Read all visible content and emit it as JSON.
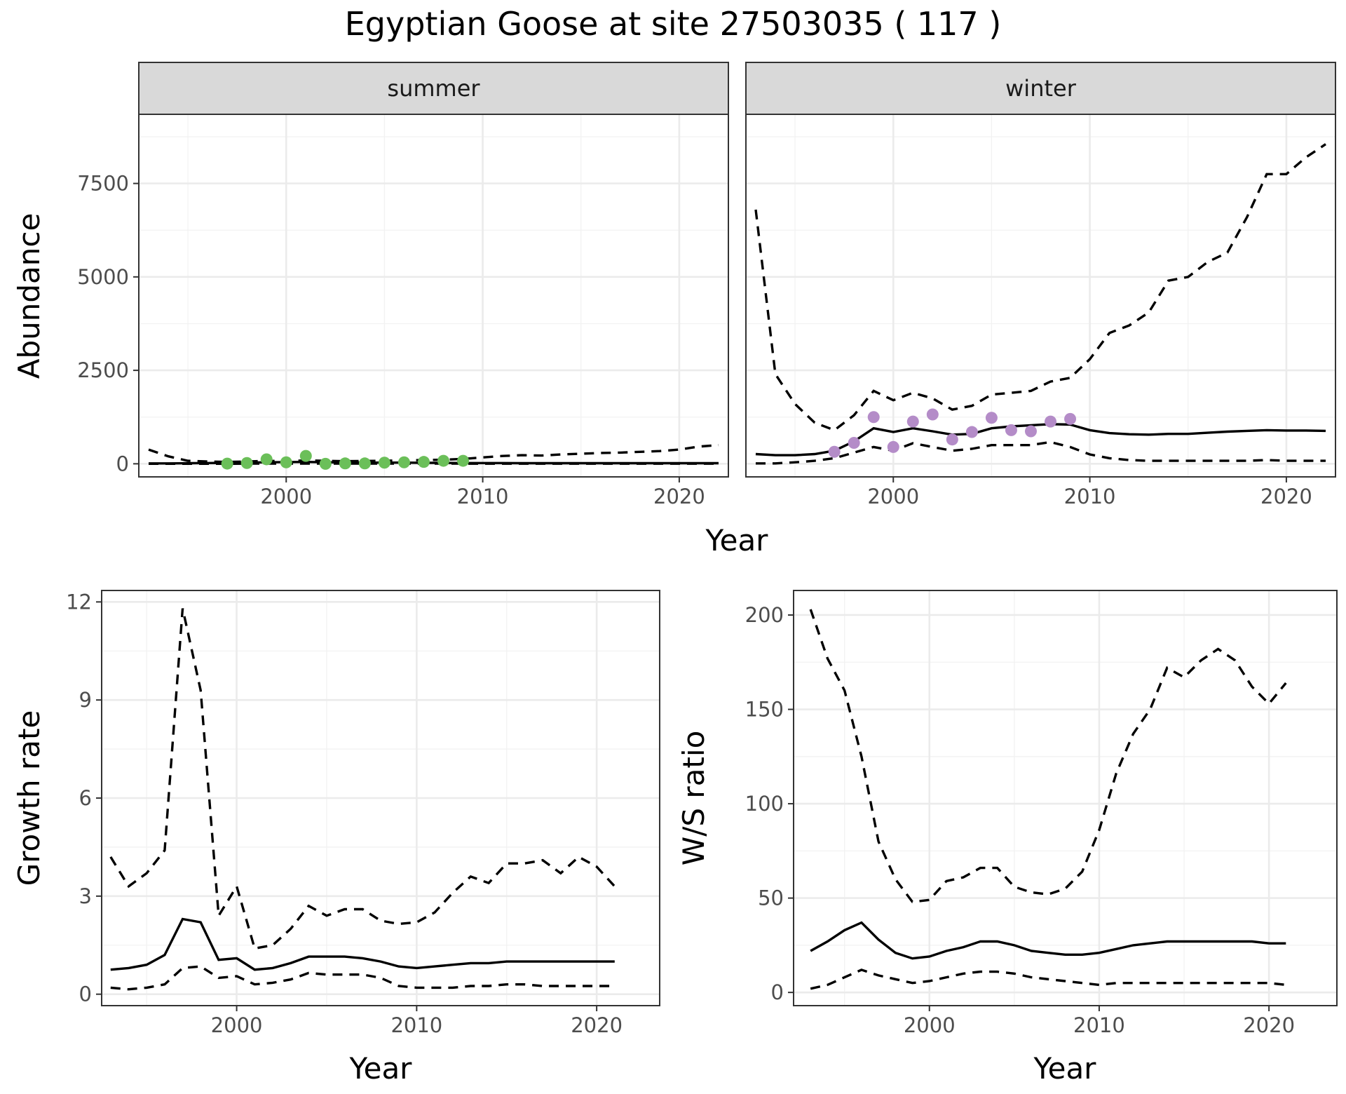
{
  "title": "Egyptian Goose at site 27503035 ( 117 )",
  "colors": {
    "summer_points": "#6bbf59",
    "winter_points": "#b48cc8",
    "strip": "#d9d9d9"
  },
  "chart_data": [
    {
      "type": "line",
      "facet": "summer",
      "strip_label": "summer",
      "xlabel": "Year",
      "ylabel": "Abundance",
      "xlim": [
        1992.5,
        2022.5
      ],
      "ylim": [
        -350,
        9350
      ],
      "xticks": [
        2000,
        2010,
        2020
      ],
      "yticks": [
        0,
        2500,
        5000,
        7500
      ],
      "grid": true,
      "series": [
        {
          "role": "mean",
          "style": "solid",
          "x": [
            1993,
            1994,
            1995,
            1996,
            1997,
            1998,
            1999,
            2000,
            2001,
            2002,
            2003,
            2004,
            2005,
            2006,
            2007,
            2008,
            2009,
            2010,
            2011,
            2012,
            2013,
            2014,
            2015,
            2016,
            2017,
            2018,
            2019,
            2020,
            2021,
            2022
          ],
          "y": [
            10,
            10,
            15,
            20,
            25,
            30,
            40,
            45,
            50,
            40,
            35,
            30,
            30,
            30,
            25,
            25,
            20,
            20,
            20,
            15,
            15,
            15,
            15,
            15,
            15,
            15,
            15,
            15,
            15,
            15
          ]
        },
        {
          "role": "upper",
          "style": "dashed",
          "x": [
            1993,
            1994,
            1995,
            1996,
            1997,
            1998,
            1999,
            2000,
            2001,
            2002,
            2003,
            2004,
            2005,
            2006,
            2007,
            2008,
            2009,
            2010,
            2011,
            2012,
            2013,
            2014,
            2015,
            2016,
            2017,
            2018,
            2019,
            2020,
            2021,
            2022
          ],
          "y": [
            380,
            200,
            80,
            60,
            50,
            60,
            80,
            70,
            90,
            80,
            70,
            75,
            80,
            90,
            100,
            110,
            130,
            170,
            210,
            230,
            220,
            250,
            270,
            290,
            300,
            320,
            340,
            380,
            460,
            500
          ]
        },
        {
          "role": "lower",
          "style": "dashed",
          "x": [
            1993,
            1994,
            1995,
            1996,
            1997,
            1998,
            1999,
            2000,
            2001,
            2002,
            2003,
            2004,
            2005,
            2006,
            2007,
            2008,
            2009,
            2010,
            2011,
            2012,
            2013,
            2014,
            2015,
            2016,
            2017,
            2018,
            2019,
            2020,
            2021,
            2022
          ],
          "y": [
            0,
            0,
            0,
            0,
            0,
            5,
            5,
            5,
            5,
            5,
            5,
            5,
            5,
            5,
            5,
            5,
            5,
            3,
            3,
            2,
            2,
            2,
            2,
            2,
            2,
            2,
            2,
            2,
            2,
            2
          ]
        }
      ],
      "points": {
        "x": [
          1997,
          1998,
          1999,
          2000,
          2001,
          2002,
          2003,
          2004,
          2005,
          2006,
          2007,
          2008,
          2009
        ],
        "y": [
          5,
          20,
          120,
          40,
          210,
          0,
          10,
          10,
          30,
          40,
          50,
          80,
          80
        ]
      }
    },
    {
      "type": "line",
      "facet": "winter",
      "strip_label": "winter",
      "xlabel": "Year",
      "ylabel": "Abundance",
      "xlim": [
        1992.5,
        2022.5
      ],
      "ylim": [
        -350,
        9350
      ],
      "xticks": [
        2000,
        2010,
        2020
      ],
      "yticks": [
        0,
        2500,
        5000,
        7500
      ],
      "grid": true,
      "series": [
        {
          "role": "mean",
          "style": "solid",
          "x": [
            1993,
            1994,
            1995,
            1996,
            1997,
            1998,
            1999,
            2000,
            2001,
            2002,
            2003,
            2004,
            2005,
            2006,
            2007,
            2008,
            2009,
            2010,
            2011,
            2012,
            2013,
            2014,
            2015,
            2016,
            2017,
            2018,
            2019,
            2020,
            2021,
            2022
          ],
          "y": [
            260,
            230,
            230,
            260,
            350,
            600,
            950,
            850,
            950,
            870,
            780,
            800,
            950,
            1000,
            1030,
            1060,
            1050,
            900,
            820,
            790,
            780,
            800,
            800,
            830,
            860,
            880,
            900,
            890,
            890,
            880
          ]
        },
        {
          "role": "upper",
          "style": "dashed",
          "x": [
            1993,
            1994,
            1995,
            1996,
            1997,
            1998,
            1999,
            2000,
            2001,
            2002,
            2003,
            2004,
            2005,
            2006,
            2007,
            2008,
            2009,
            2010,
            2011,
            2012,
            2013,
            2014,
            2015,
            2016,
            2017,
            2018,
            2019,
            2020,
            2021,
            2022
          ],
          "y": [
            6800,
            2400,
            1600,
            1100,
            900,
            1300,
            1950,
            1700,
            1900,
            1750,
            1450,
            1550,
            1850,
            1900,
            1950,
            2200,
            2300,
            2800,
            3500,
            3700,
            4050,
            4900,
            5000,
            5400,
            5650,
            6600,
            7750,
            7750,
            8200,
            8550
          ]
        },
        {
          "role": "lower",
          "style": "dashed",
          "x": [
            1993,
            1994,
            1995,
            1996,
            1997,
            1998,
            1999,
            2000,
            2001,
            2002,
            2003,
            2004,
            2005,
            2006,
            2007,
            2008,
            2009,
            2010,
            2011,
            2012,
            2013,
            2014,
            2015,
            2016,
            2017,
            2018,
            2019,
            2020,
            2021,
            2022
          ],
          "y": [
            10,
            10,
            40,
            80,
            150,
            300,
            450,
            350,
            550,
            450,
            350,
            400,
            500,
            500,
            500,
            580,
            450,
            250,
            150,
            100,
            80,
            80,
            80,
            80,
            80,
            80,
            100,
            80,
            80,
            80
          ]
        }
      ],
      "points": {
        "x": [
          1997,
          1998,
          1999,
          2000,
          2001,
          2002,
          2003,
          2004,
          2005,
          2006,
          2007,
          2008,
          2009
        ],
        "y": [
          320,
          560,
          1250,
          450,
          1130,
          1320,
          650,
          850,
          1230,
          900,
          870,
          1130,
          1200
        ]
      }
    },
    {
      "type": "line",
      "facet": "growth",
      "xlabel": "Year",
      "ylabel": "Growth rate",
      "xlim": [
        1992.5,
        2023.5
      ],
      "ylim": [
        -0.35,
        12.35
      ],
      "xticks": [
        2000,
        2010,
        2020
      ],
      "yticks": [
        0,
        3,
        6,
        9,
        12
      ],
      "grid": true,
      "series": [
        {
          "role": "mean",
          "style": "solid",
          "x": [
            1993,
            1994,
            1995,
            1996,
            1997,
            1998,
            1999,
            2000,
            2001,
            2002,
            2003,
            2004,
            2005,
            2006,
            2007,
            2008,
            2009,
            2010,
            2011,
            2012,
            2013,
            2014,
            2015,
            2016,
            2017,
            2018,
            2019,
            2020,
            2021
          ],
          "y": [
            0.75,
            0.8,
            0.9,
            1.2,
            2.3,
            2.2,
            1.05,
            1.1,
            0.75,
            0.8,
            0.95,
            1.15,
            1.15,
            1.15,
            1.1,
            1.0,
            0.85,
            0.8,
            0.85,
            0.9,
            0.95,
            0.95,
            1.0,
            1.0,
            1.0,
            1.0,
            1.0,
            1.0,
            1.0
          ]
        },
        {
          "role": "upper",
          "style": "dashed",
          "x": [
            1993,
            1994,
            1995,
            1996,
            1997,
            1998,
            1999,
            2000,
            2001,
            2002,
            2003,
            2004,
            2005,
            2006,
            2007,
            2008,
            2009,
            2010,
            2011,
            2012,
            2013,
            2014,
            2015,
            2016,
            2017,
            2018,
            2019,
            2020,
            2021
          ],
          "y": [
            4.2,
            3.3,
            3.7,
            4.4,
            11.8,
            9.3,
            2.4,
            3.3,
            1.4,
            1.5,
            2.0,
            2.7,
            2.4,
            2.6,
            2.6,
            2.25,
            2.15,
            2.2,
            2.5,
            3.1,
            3.6,
            3.4,
            4.0,
            4.0,
            4.1,
            3.7,
            4.2,
            3.9,
            3.3
          ]
        },
        {
          "role": "lower",
          "style": "dashed",
          "x": [
            1993,
            1994,
            1995,
            1996,
            1997,
            1998,
            1999,
            2000,
            2001,
            2002,
            2003,
            2004,
            2005,
            2006,
            2007,
            2008,
            2009,
            2010,
            2011,
            2012,
            2013,
            2014,
            2015,
            2016,
            2017,
            2018,
            2019,
            2020,
            2021
          ],
          "y": [
            0.2,
            0.15,
            0.2,
            0.3,
            0.8,
            0.85,
            0.5,
            0.55,
            0.3,
            0.35,
            0.45,
            0.65,
            0.6,
            0.6,
            0.6,
            0.5,
            0.25,
            0.2,
            0.2,
            0.2,
            0.25,
            0.25,
            0.3,
            0.3,
            0.25,
            0.25,
            0.25,
            0.25,
            0.25
          ]
        }
      ]
    },
    {
      "type": "line",
      "facet": "ws_ratio",
      "xlabel": "Year",
      "ylabel": "W/S ratio",
      "xlim": [
        1992,
        2024
      ],
      "ylim": [
        -7,
        213
      ],
      "xticks": [
        2000,
        2010,
        2020
      ],
      "yticks": [
        0,
        50,
        100,
        150,
        200
      ],
      "grid": true,
      "series": [
        {
          "role": "mean",
          "style": "solid",
          "x": [
            1993,
            1994,
            1995,
            1996,
            1997,
            1998,
            1999,
            2000,
            2001,
            2002,
            2003,
            2004,
            2005,
            2006,
            2007,
            2008,
            2009,
            2010,
            2011,
            2012,
            2013,
            2014,
            2015,
            2016,
            2017,
            2018,
            2019,
            2020,
            2021
          ],
          "y": [
            22,
            27,
            33,
            37,
            28,
            21,
            18,
            19,
            22,
            24,
            27,
            27,
            25,
            22,
            21,
            20,
            20,
            21,
            23,
            25,
            26,
            27,
            27,
            27,
            27,
            27,
            27,
            26,
            26
          ]
        },
        {
          "role": "upper",
          "style": "dashed",
          "x": [
            1993,
            1994,
            1995,
            1996,
            1997,
            1998,
            1999,
            2000,
            2001,
            2002,
            2003,
            2004,
            2005,
            2006,
            2007,
            2008,
            2009,
            2010,
            2011,
            2012,
            2013,
            2014,
            2015,
            2016,
            2017,
            2018,
            2019,
            2020,
            2021
          ],
          "y": [
            203,
            177,
            160,
            125,
            80,
            60,
            48,
            49,
            59,
            61,
            66,
            66,
            56,
            53,
            52,
            55,
            64,
            86,
            116,
            137,
            150,
            172,
            167,
            176,
            182,
            176,
            162,
            153,
            164
          ]
        },
        {
          "role": "lower",
          "style": "dashed",
          "x": [
            1993,
            1994,
            1995,
            1996,
            1997,
            1998,
            1999,
            2000,
            2001,
            2002,
            2003,
            2004,
            2005,
            2006,
            2007,
            2008,
            2009,
            2010,
            2011,
            2012,
            2013,
            2014,
            2015,
            2016,
            2017,
            2018,
            2019,
            2020,
            2021
          ],
          "y": [
            2,
            4,
            8,
            12,
            9,
            7,
            5,
            6,
            8,
            10,
            11,
            11,
            10,
            8,
            7,
            6,
            5,
            4,
            5,
            5,
            5,
            5,
            5,
            5,
            5,
            5,
            5,
            5,
            4
          ]
        }
      ]
    }
  ]
}
